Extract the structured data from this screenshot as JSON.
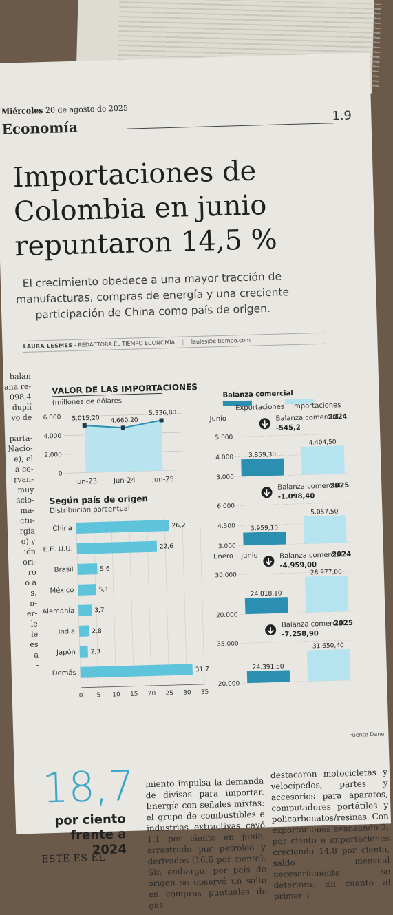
{
  "header": {
    "date_day": "Miércoles",
    "date_rest": "20 de agosto de 2025",
    "section": "Economía",
    "page_number": "1.9"
  },
  "article": {
    "headline": "Importaciones de Colombia en junio repuntaron 14,5 %",
    "deck": "El crecimiento obedece a una mayor tracción de manufacturas, compras de energía y una creciente participación de China como país de origen.",
    "author": "LAURA LESMES",
    "role": "- REDACTORA EL TIEMPO ECONOMÍA",
    "email": "laules@eltiempo.com",
    "left_fragments": [
      "balan",
      "ana re-",
      "098,4",
      "duplí",
      "vo de",
      "",
      "parta-",
      "Nacio-",
      "e), el",
      "a co-",
      "rvan-",
      "muy",
      "acio-",
      "ma-",
      "ctu-",
      "rgía",
      "o) y",
      "ión",
      "ori-",
      "ro",
      "ó a",
      "s.",
      "n-",
      "er-",
      "le",
      "le",
      "es",
      "a",
      "-"
    ],
    "col2": "miento impulsa la demanda de divisas para importar. Energía con señales mixtas: el grupo de combustibles e industrias extractivas cayó 1,1 por ciento en junio, arrastrado por petróleo y derivados (16,6 por ciento). Sin embargo, por país de origen se observó un salto en compras puntuales de gas",
    "col3": "destacaron motocicletas y velocípedos, partes y accesorios para aparatos, computadores portátiles y policarbonatos/resinas. Con exportaciones avanzando 2, por ciento e importaciones creciendo 14,8 por ciento, saldo mensual necesariamente se deteriora. En cuanto al primer s",
    "callout_number": "18,7",
    "callout_text": "por ciento frente a 2024",
    "callout_after": "ESTE ES EL"
  },
  "fuente": "Fuente Dane",
  "colors": {
    "accent": "#5ec4dc",
    "accent_dark": "#2a8fb0",
    "ink": "#222222"
  },
  "chart_data": [
    {
      "type": "area",
      "title": "VALOR DE LAS IMPORTACIONES",
      "subtitle": "(millones de dólares",
      "categories": [
        "Jun-23",
        "Jun-24",
        "Jun-25"
      ],
      "values": [
        5015.2,
        4660.2,
        5336.8
      ],
      "value_labels": [
        "5.015,20",
        "4.660,20",
        "5.336,80"
      ],
      "yticks": [
        0,
        2000,
        4000,
        6000
      ],
      "ytick_labels": [
        "0",
        "2.000",
        "4.000",
        "6.000"
      ],
      "ylim": [
        0,
        6000
      ]
    },
    {
      "type": "bar",
      "orientation": "horizontal",
      "title": "Según país de origen",
      "subtitle": "Distribución porcentual",
      "categories": [
        "China",
        "E.E. U.U.",
        "Brasil",
        "México",
        "Alemania",
        "India",
        "Japón",
        "Demás"
      ],
      "values": [
        26.2,
        22.6,
        5.6,
        5.1,
        3.7,
        2.8,
        2.3,
        31.7
      ],
      "value_labels": [
        "26,2",
        "22,6",
        "5,6",
        "5,1",
        "3,7",
        "2,8",
        "2,3",
        "31,7"
      ],
      "xticks": [
        0,
        5,
        10,
        15,
        20,
        25,
        30,
        35
      ],
      "xlim": [
        0,
        35
      ]
    },
    {
      "type": "bar",
      "title": "Balanza comercial",
      "legend": [
        "Exportaciones",
        "Importaciones"
      ],
      "panels": [
        {
          "period": "Junio",
          "year": "2024",
          "balance_label": "Balanza comercial",
          "balance": "-545,2",
          "exports": 3859.3,
          "imports": 4404.5,
          "exports_label": "3.859,30",
          "imports_label": "4.404,50",
          "yticks": [
            "3.000",
            "4.000",
            "5.000"
          ],
          "ylim": [
            3000,
            5000
          ]
        },
        {
          "period": "",
          "year": "2025",
          "balance_label": "Balanza comercial",
          "balance": "-1.098,40",
          "exports": 3959.1,
          "imports": 5057.5,
          "exports_label": "3.959,10",
          "imports_label": "5.057,50",
          "yticks": [
            "3.000",
            "4.500",
            "6.000"
          ],
          "ylim": [
            3000,
            6000
          ]
        },
        {
          "period": "Enero – junio",
          "year": "2024",
          "balance_label": "Balanza comercial",
          "balance": "-4.959,00",
          "exports": 24018.1,
          "imports": 28977.0,
          "exports_label": "24.018,10",
          "imports_label": "28.977,00",
          "yticks": [
            "20.000",
            "30.000"
          ],
          "ylim": [
            20000,
            30000
          ]
        },
        {
          "period": "",
          "year": "2025",
          "balance_label": "Balanza comercial",
          "balance": "-7.258,90",
          "exports": 24391.5,
          "imports": 31650.4,
          "exports_label": "24.391,50",
          "imports_label": "31.650,40",
          "yticks": [
            "20.000",
            "35.000"
          ],
          "ylim": [
            20000,
            35000
          ]
        }
      ]
    }
  ]
}
